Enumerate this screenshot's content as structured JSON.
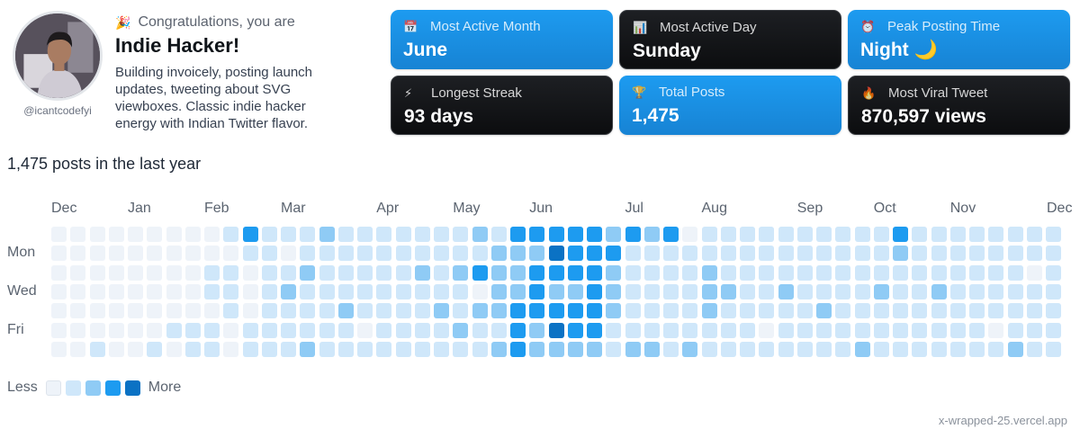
{
  "profile": {
    "handle": "@icantcodefyi",
    "congrats_emoji": "🎉",
    "congrats_text": "Congratulations, you are",
    "title": "Indie Hacker!",
    "bio": "Building invoicely, posting launch updates, tweeting about SVG viewboxes. Classic indie hacker energy with Indian Twitter flavor."
  },
  "cards": [
    {
      "icon": "📅",
      "icon_name": "calendar-icon",
      "label": "Most Active Month",
      "value": "June",
      "style": "blue"
    },
    {
      "icon": "📊",
      "icon_name": "bar-chart-icon",
      "label": "Most Active Day",
      "value": "Sunday",
      "style": "dark"
    },
    {
      "icon": "⏰",
      "icon_name": "alarm-clock-icon",
      "label": "Peak Posting Time",
      "value": "Night 🌙",
      "style": "blue"
    },
    {
      "icon": "⚡",
      "icon_name": "lightning-icon",
      "label": "Longest Streak",
      "value": "93 days",
      "style": "dark"
    },
    {
      "icon": "🏆",
      "icon_name": "trophy-icon",
      "label": "Total Posts",
      "value": "1,475",
      "style": "blue"
    },
    {
      "icon": "🔥",
      "icon_name": "fire-icon",
      "label": "Most Viral Tweet",
      "value": "870,597 views",
      "style": "dark"
    }
  ],
  "heatmap": {
    "summary": "1,475 posts in the last year",
    "months": [
      "Dec",
      "Jan",
      "Feb",
      "Mar",
      "Apr",
      "May",
      "Jun",
      "Jul",
      "Aug",
      "Sep",
      "Oct",
      "Nov",
      "Dec"
    ],
    "month_week_index": [
      0,
      4,
      8,
      12,
      17,
      21,
      25,
      30,
      34,
      39,
      43,
      47,
      52
    ],
    "day_labels": [
      {
        "label": "Mon",
        "row": 1
      },
      {
        "label": "Wed",
        "row": 3
      },
      {
        "label": "Fri",
        "row": 5
      }
    ],
    "colors": [
      "#eef3f9",
      "#cfe7fa",
      "#8fcbf5",
      "#1d9bf0",
      "#0b72c4"
    ],
    "weeks": [
      "0000000",
      "0000000",
      "0000001",
      "0000000",
      "0000000",
      "0000001",
      "0000010",
      "0000011",
      "0011011",
      "1011100",
      "3100011",
      "1111111",
      "1012111",
      "1121112",
      "2111111",
      "1111211",
      "1111101",
      "1111111",
      "1111111",
      "1121111",
      "1111211",
      "1121121",
      "2130211",
      "1222212",
      "3222333",
      "3233322",
      "3432342",
      "3332332",
      "3333332",
      "2322211",
      "3111112",
      "2111112",
      "3111111",
      "0111112",
      "1122211",
      "1112111",
      "1111111",
      "1111101",
      "1112111",
      "1111111",
      "1111211",
      "1111111",
      "1111112",
      "1112111",
      "3211111",
      "1111111",
      "1112111",
      "1111111",
      "1111111",
      "1111101",
      "1111112",
      "1101111",
      "1111111"
    ]
  },
  "legend": {
    "less": "Less",
    "more": "More"
  },
  "footer": "x-wrapped-25.vercel.app"
}
